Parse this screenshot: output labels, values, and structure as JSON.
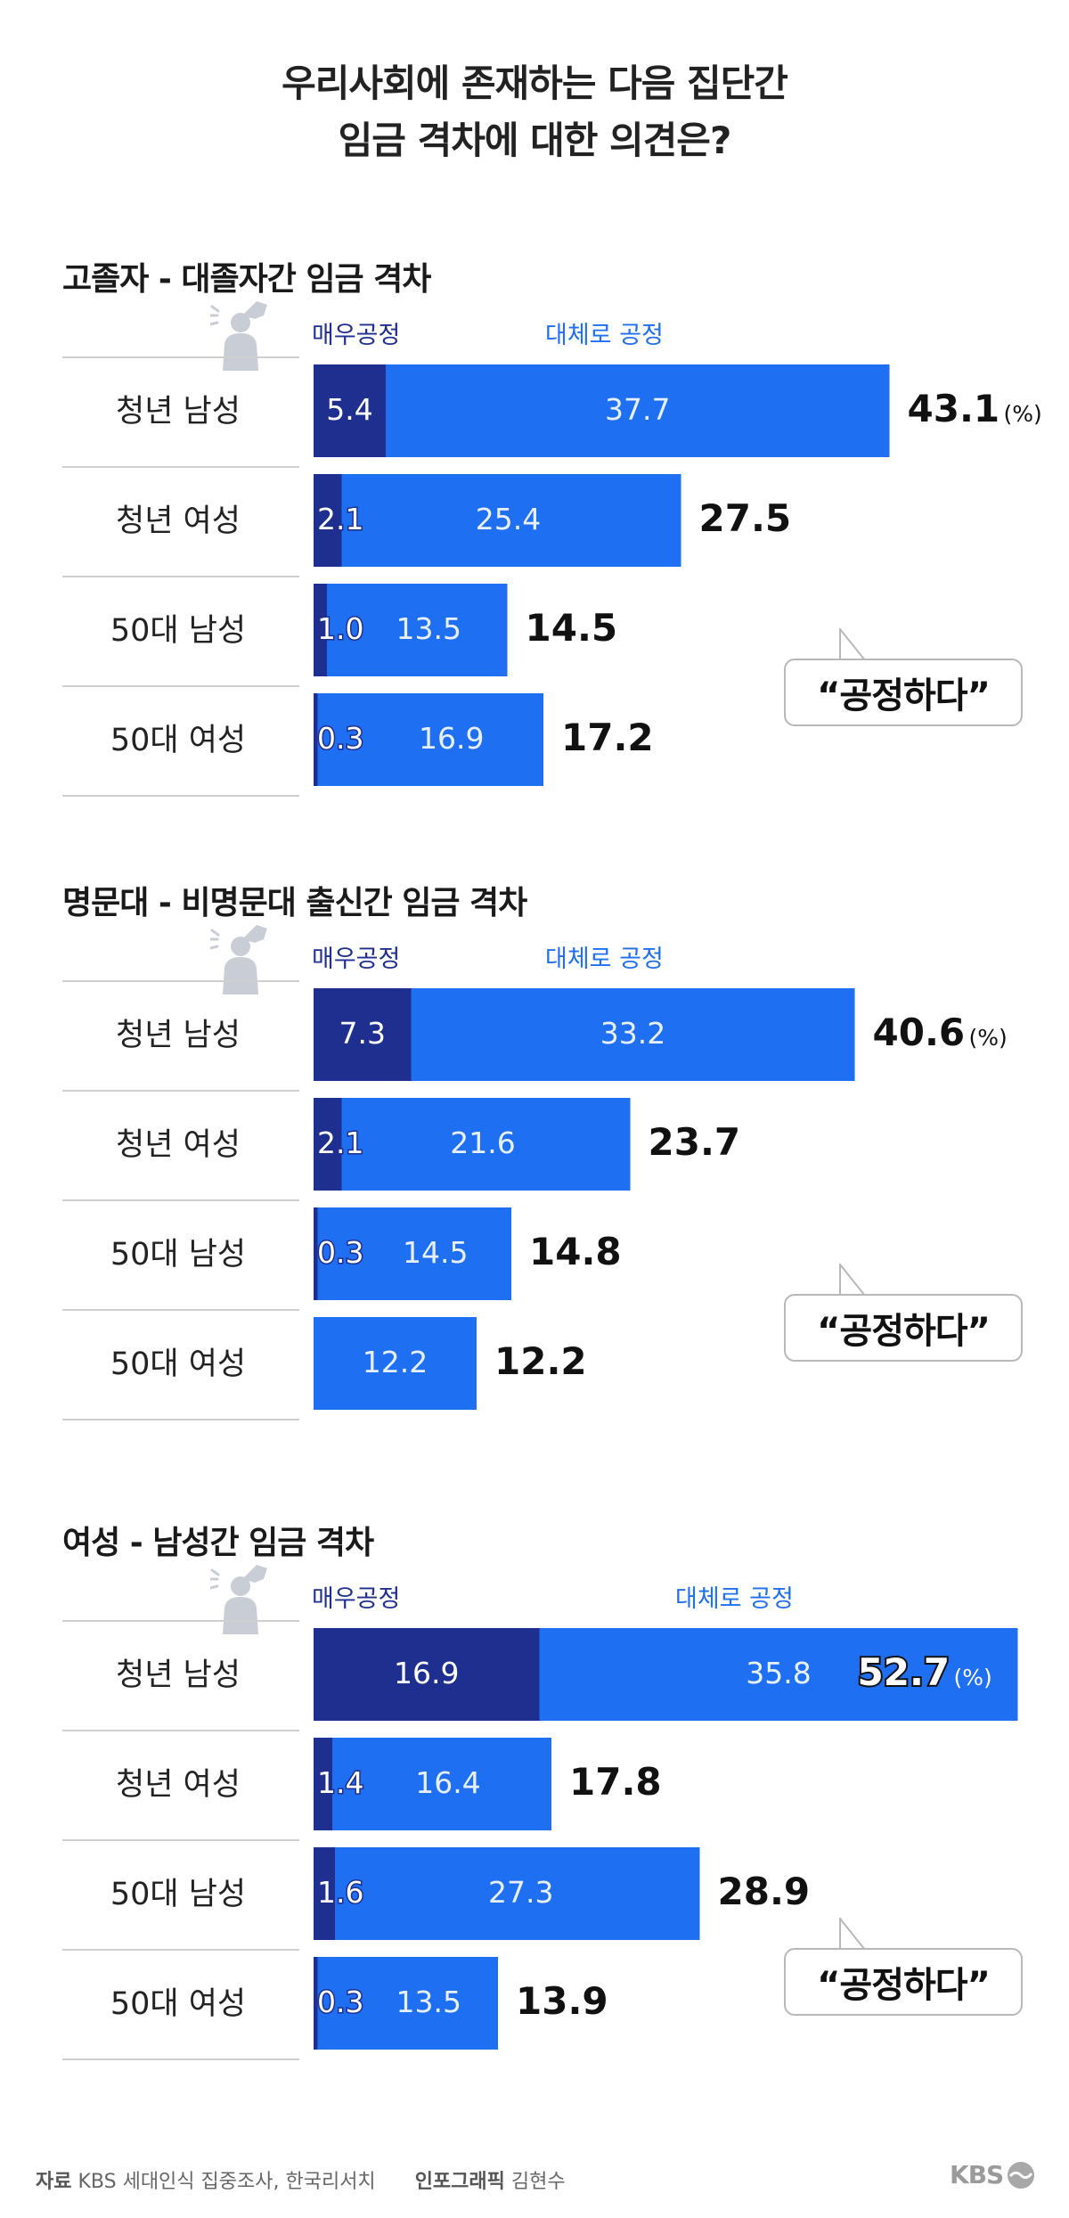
{
  "title_line1": "우리사회에 존재하는 다음 집단간",
  "title_line2": "임금 격차에 대한 의견은?",
  "legend": {
    "strong": "매우공정",
    "some": "대체로 공정",
    "icon": "person-with-megaphone-icon"
  },
  "bubble_text": "“공정하다”",
  "unit_label": "(%)",
  "colors": {
    "strong": "#1e2f8f",
    "some": "#1f6ff2",
    "divider": "#cfcfcf",
    "bubble_border": "#b8b8b8"
  },
  "footer": {
    "source_label": "자료",
    "source_text": "KBS 세대인식 집중조사, 한국리서치",
    "credit_label": "인포그래픽",
    "credit_text": "김현수",
    "logo_text": "KBS"
  },
  "chart_data": [
    {
      "type": "bar",
      "title": "고졸자 - 대졸자간 임금 격차",
      "categories": [
        "청년 남성",
        "청년 여성",
        "50대 남성",
        "50대 여성"
      ],
      "series": [
        {
          "name": "매우공정",
          "values": [
            5.4,
            2.1,
            1.0,
            0.3
          ]
        },
        {
          "name": "대체로 공정",
          "values": [
            37.7,
            25.4,
            13.5,
            16.9
          ]
        }
      ],
      "totals": [
        "43.1",
        "27.5",
        "14.5",
        "17.2"
      ],
      "stacked": true,
      "orientation": "horizontal"
    },
    {
      "type": "bar",
      "title": "명문대 - 비명문대 출신간 임금 격차",
      "categories": [
        "청년 남성",
        "청년 여성",
        "50대 남성",
        "50대 여성"
      ],
      "series": [
        {
          "name": "매우공정",
          "values": [
            7.3,
            2.1,
            0.3,
            0
          ]
        },
        {
          "name": "대체로 공정",
          "values": [
            33.2,
            21.6,
            14.5,
            12.2
          ]
        }
      ],
      "totals": [
        "40.6",
        "23.7",
        "14.8",
        "12.2"
      ],
      "stacked": true,
      "orientation": "horizontal"
    },
    {
      "type": "bar",
      "title": "여성 - 남성간 임금 격차",
      "categories": [
        "청년 남성",
        "청년 여성",
        "50대 남성",
        "50대 여성"
      ],
      "series": [
        {
          "name": "매우공정",
          "values": [
            16.9,
            1.4,
            1.6,
            0.3
          ]
        },
        {
          "name": "대체로 공정",
          "values": [
            35.8,
            16.4,
            27.3,
            13.5
          ]
        }
      ],
      "totals": [
        "52.7",
        "17.8",
        "28.9",
        "13.9"
      ],
      "stacked": true,
      "orientation": "horizontal"
    }
  ]
}
